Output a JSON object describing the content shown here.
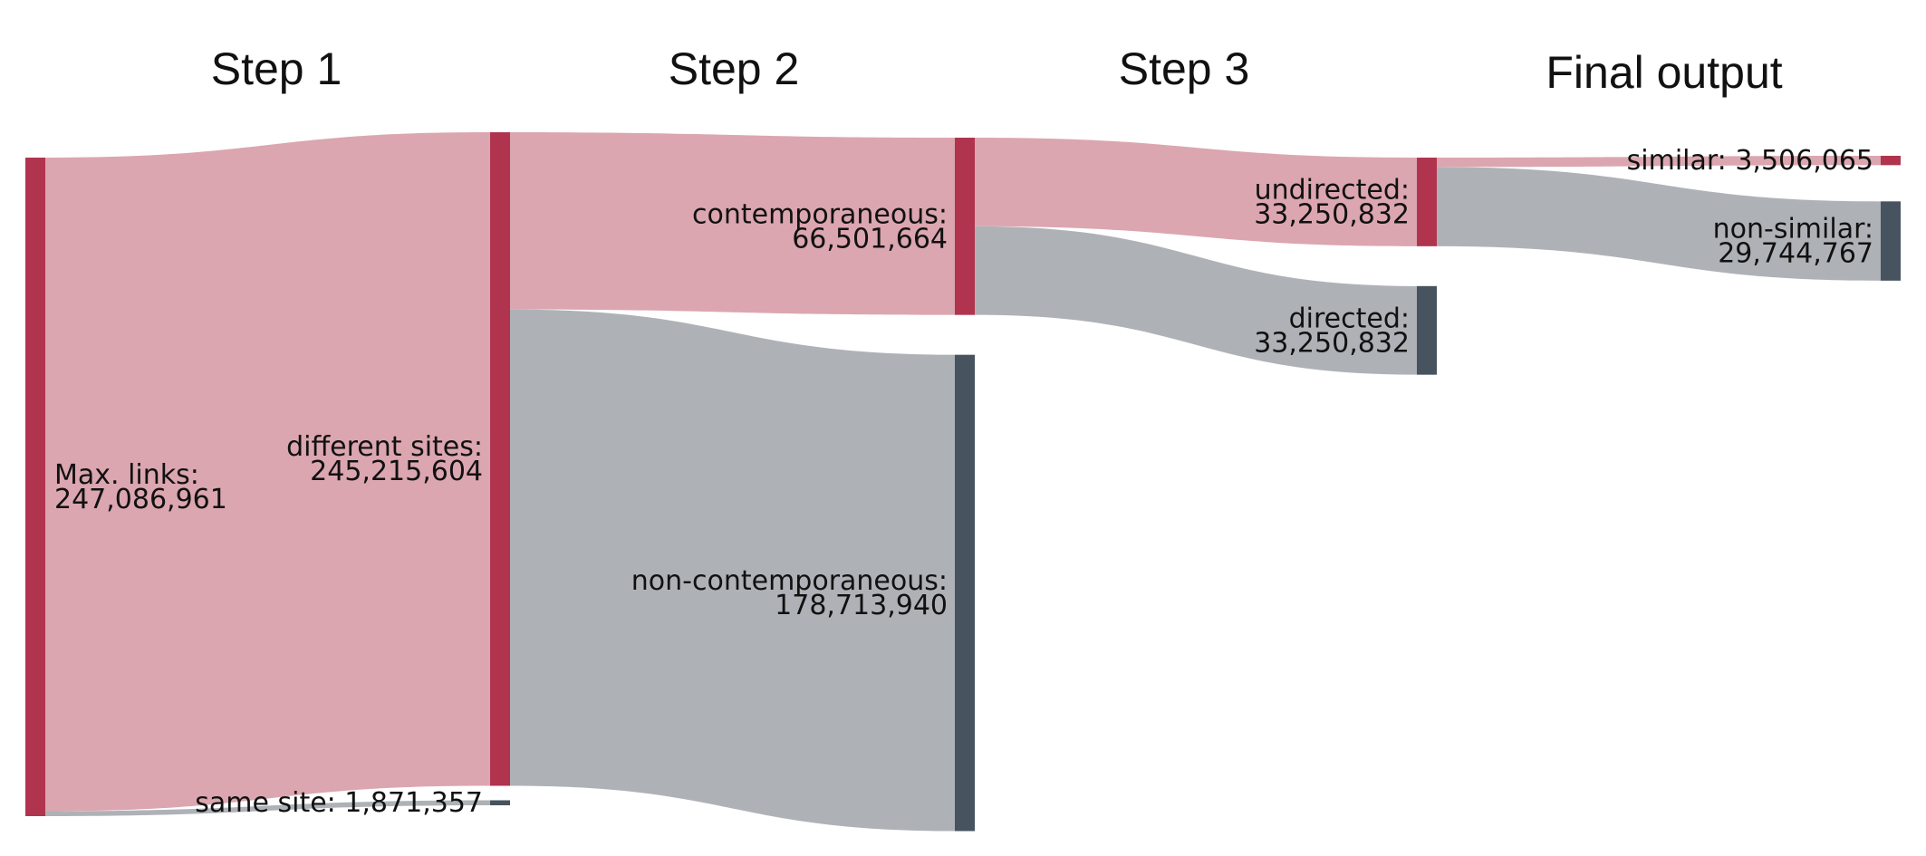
{
  "colors": {
    "kept_node": "#B0344E",
    "dropped_node": "#47535F",
    "kept_link": "#DBA6B0",
    "dropped_link": "#AEB2B7"
  },
  "steps": [
    "Step 1",
    "Step 2",
    "Step 3",
    "Final output"
  ],
  "chart_data": {
    "type": "sankey",
    "nodes": [
      {
        "id": "max_links",
        "step": 0,
        "label": "Max. links:",
        "value_text": "247,086,961",
        "value": 247086961,
        "kind": "kept"
      },
      {
        "id": "different_sites",
        "step": 1,
        "label": "different sites:",
        "value_text": "245,215,604",
        "value": 245215604,
        "kind": "kept"
      },
      {
        "id": "same_site",
        "step": 1,
        "label": "same site: 1,871,357",
        "value_text": "",
        "value": 1871357,
        "kind": "dropped"
      },
      {
        "id": "contemporaneous",
        "step": 2,
        "label": "contemporaneous:",
        "value_text": "66,501,664",
        "value": 66501664,
        "kind": "kept"
      },
      {
        "id": "non_contemporaneous",
        "step": 2,
        "label": "non-contemporaneous:",
        "value_text": "178,713,940",
        "value": 178713940,
        "kind": "dropped"
      },
      {
        "id": "undirected",
        "step": 3,
        "label": "undirected:",
        "value_text": "33,250,832",
        "value": 33250832,
        "kind": "kept"
      },
      {
        "id": "directed",
        "step": 3,
        "label": "directed:",
        "value_text": "33,250,832",
        "value": 33250832,
        "kind": "dropped"
      },
      {
        "id": "similar",
        "step": 4,
        "label": "similar: 3,506,065",
        "value_text": "",
        "value": 3506065,
        "kind": "kept"
      },
      {
        "id": "non_similar",
        "step": 4,
        "label": "non-similar:",
        "value_text": "29,744,767",
        "value": 29744767,
        "kind": "dropped"
      }
    ],
    "links": [
      {
        "source": "max_links",
        "target": "different_sites",
        "value": 245215604
      },
      {
        "source": "max_links",
        "target": "same_site",
        "value": 1871357
      },
      {
        "source": "different_sites",
        "target": "contemporaneous",
        "value": 66501664
      },
      {
        "source": "different_sites",
        "target": "non_contemporaneous",
        "value": 178713940
      },
      {
        "source": "contemporaneous",
        "target": "undirected",
        "value": 33250832
      },
      {
        "source": "contemporaneous",
        "target": "directed",
        "value": 33250832
      },
      {
        "source": "undirected",
        "target": "similar",
        "value": 3506065
      },
      {
        "source": "undirected",
        "target": "non_similar",
        "value": 29744767
      }
    ]
  }
}
